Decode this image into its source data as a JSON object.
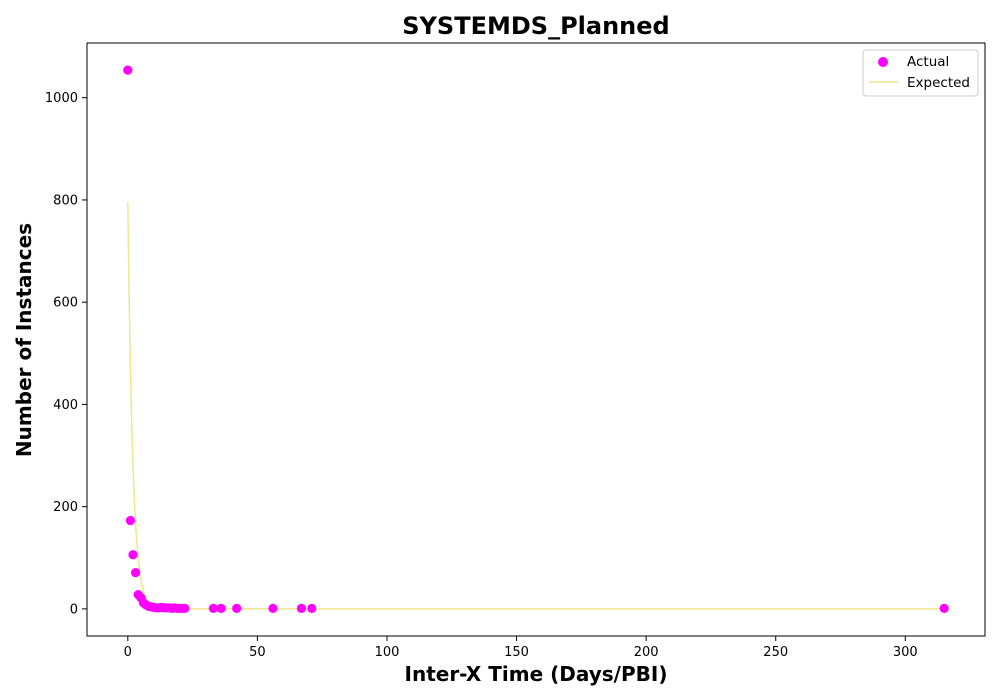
{
  "chart_data": {
    "type": "scatter",
    "title": "SYSTEMDS_Planned",
    "xlabel": "Inter-X Time (Days/PBI)",
    "ylabel": "Number of Instances",
    "xlim": [
      -15.75,
      330.75
    ],
    "ylim": [
      -53,
      1107
    ],
    "xticks": [
      0,
      50,
      100,
      150,
      200,
      250,
      300
    ],
    "yticks": [
      0,
      200,
      400,
      600,
      800,
      1000
    ],
    "grid": false,
    "legend": {
      "location": "top-right",
      "entries": [
        "Actual",
        "Expected"
      ]
    },
    "colors": {
      "actual": "#ff00ff",
      "expected": "#f0e68c"
    },
    "series": [
      {
        "name": "Actual",
        "kind": "scatter",
        "x": [
          0,
          1,
          2,
          3,
          4,
          5,
          6,
          7,
          8,
          9,
          10,
          11,
          12,
          13,
          14,
          15,
          16,
          17,
          18,
          19,
          20,
          21,
          22,
          33,
          36,
          42,
          56,
          67,
          71,
          315
        ],
        "y": [
          1054,
          173,
          106,
          71,
          28,
          22,
          12,
          8,
          5,
          4,
          3,
          2,
          2,
          3,
          2,
          2,
          2,
          1,
          2,
          1,
          1,
          1,
          1,
          1,
          1,
          1,
          1,
          1,
          1,
          1
        ]
      },
      {
        "name": "Expected",
        "kind": "line",
        "x": [
          0,
          0.5,
          1,
          1.5,
          2,
          2.5,
          3,
          3.5,
          4,
          5,
          6,
          7,
          8,
          9,
          10,
          12,
          15,
          20,
          30,
          50,
          100,
          200,
          315
        ],
        "y": [
          796,
          613,
          472,
          363,
          280,
          215,
          166,
          128,
          98,
          58,
          35,
          21,
          12,
          7,
          4.3,
          1.6,
          0.3,
          0,
          0,
          0,
          0,
          0,
          0
        ]
      }
    ]
  }
}
